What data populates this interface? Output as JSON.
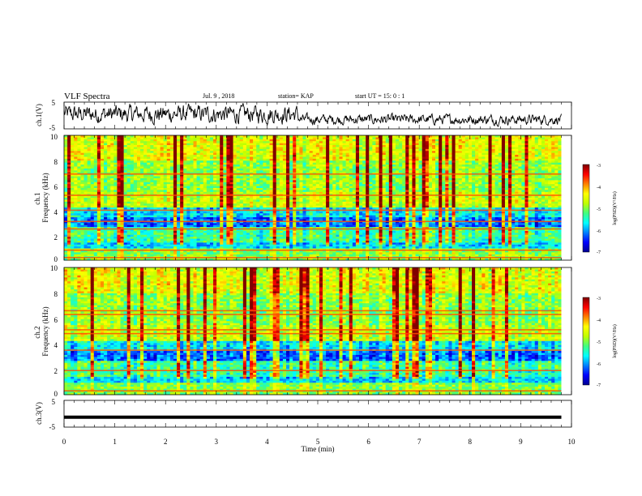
{
  "header": {
    "title": "VLF Spectra",
    "date": "Jul. 9 , 2018",
    "station": "station= KAP",
    "start": "start UT = 15: 0 : 1"
  },
  "colors": {
    "colormap": [
      "#000090",
      "#0000ff",
      "#0080ff",
      "#00ffff",
      "#40ff80",
      "#c0ff00",
      "#ffff00",
      "#ff8000",
      "#ff0000",
      "#800000"
    ]
  },
  "chart_data": [
    {
      "type": "line",
      "name": "ch1-waveform",
      "ylabel": "ch.1(V)",
      "yticks": [
        "5",
        "-5"
      ],
      "ylim": [
        -5,
        5
      ],
      "xlim": [
        0,
        10
      ]
    },
    {
      "type": "heatmap",
      "name": "ch1-spectrogram",
      "ylabel": "ch.1\nFrequency (kHz)",
      "yticks": [
        "0",
        "2",
        "4",
        "6",
        "8",
        "10"
      ],
      "ylim": [
        0,
        10
      ],
      "xlim": [
        0,
        9.8
      ],
      "colorbar": {
        "label": "log(PSD)(V²/Hz)",
        "ticks": [
          "-3",
          "-4",
          "-5",
          "-6",
          "-7"
        ],
        "range": [
          -7,
          -3
        ]
      },
      "bands_khz": [
        0.2,
        0.8,
        2.5,
        3.1,
        4.0,
        5.2,
        6.9
      ]
    },
    {
      "type": "heatmap",
      "name": "ch2-spectrogram",
      "ylabel": "ch.2\nFrequency (kHz)",
      "yticks": [
        "0",
        "2",
        "4",
        "6",
        "8",
        "10"
      ],
      "ylim": [
        0,
        10
      ],
      "xlim": [
        0,
        9.8
      ],
      "colorbar": {
        "label": "log(PSD)(V²/Hz)",
        "ticks": [
          "-3",
          "-4",
          "-5",
          "-6",
          "-7"
        ],
        "range": [
          -7,
          -3
        ]
      },
      "bands_khz": [
        0.3,
        1.9,
        3.5,
        4.8,
        5.1,
        6.3,
        6.6
      ]
    },
    {
      "type": "line",
      "name": "ch3-waveform",
      "ylabel": "ch.3(V)",
      "yticks": [
        "5",
        "-5"
      ],
      "ylim": [
        -5,
        5
      ],
      "xlim": [
        0,
        10
      ],
      "x": [
        0,
        9.8
      ],
      "y": [
        -1.3,
        -1.3
      ]
    }
  ],
  "xaxis": {
    "label": "Time (min)",
    "ticks": [
      "0",
      "1",
      "2",
      "3",
      "4",
      "5",
      "6",
      "7",
      "8",
      "9",
      "10"
    ],
    "range": [
      0,
      10
    ]
  }
}
